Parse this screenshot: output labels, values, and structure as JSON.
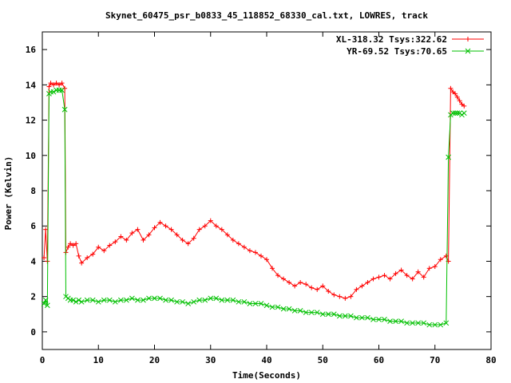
{
  "chart_data": {
    "type": "line",
    "title": "Skynet_60475_psr_b0833_45_118852_68330_cal.txt, LOWRES, track",
    "xlabel": "Time(Seconds)",
    "ylabel": "Power (Kelvin)",
    "xlim": [
      0,
      80
    ],
    "ylim": [
      -1,
      17
    ],
    "xticks": [
      0,
      10,
      20,
      30,
      40,
      50,
      60,
      70,
      80
    ],
    "yticks": [
      0,
      2,
      4,
      6,
      8,
      10,
      12,
      14,
      16
    ],
    "grid": false,
    "legend_position": "top-right",
    "series": [
      {
        "name": "XL-318.32 Tsys:322.62",
        "color": "#ff0000",
        "marker": "plus",
        "x": [
          0.3,
          0.6,
          0.9,
          1.2,
          1.5,
          2,
          2.5,
          3,
          3.5,
          4,
          4.2,
          4.6,
          5,
          5.5,
          6,
          6.5,
          7,
          8,
          9,
          10,
          11,
          12,
          13,
          14,
          15,
          16,
          17,
          18,
          19,
          20,
          21,
          22,
          23,
          24,
          25,
          26,
          27,
          28,
          29,
          30,
          31,
          32,
          33,
          34,
          35,
          36,
          37,
          38,
          39,
          40,
          41,
          42,
          43,
          44,
          45,
          46,
          47,
          48,
          49,
          50,
          51,
          52,
          53,
          54,
          55,
          56,
          57,
          58,
          59,
          60,
          61,
          62,
          63,
          64,
          65,
          66,
          67,
          68,
          69,
          70,
          71,
          72,
          72.4,
          72.8,
          73.2,
          73.6,
          74,
          74.4,
          74.8,
          75.2
        ],
        "y": [
          4.2,
          5.8,
          4.0,
          13.9,
          14.1,
          14.0,
          14.1,
          14.0,
          14.1,
          13.8,
          4.5,
          4.8,
          5.0,
          4.9,
          5.0,
          4.3,
          3.9,
          4.2,
          4.4,
          4.8,
          4.6,
          4.9,
          5.1,
          5.4,
          5.2,
          5.6,
          5.8,
          5.2,
          5.5,
          5.9,
          6.2,
          6.0,
          5.8,
          5.5,
          5.2,
          5.0,
          5.3,
          5.8,
          6.0,
          6.3,
          6.0,
          5.8,
          5.5,
          5.2,
          5.0,
          4.8,
          4.6,
          4.5,
          4.3,
          4.1,
          3.6,
          3.2,
          3.0,
          2.8,
          2.6,
          2.8,
          2.7,
          2.5,
          2.4,
          2.6,
          2.3,
          2.1,
          2.0,
          1.9,
          2.0,
          2.4,
          2.6,
          2.8,
          3.0,
          3.1,
          3.2,
          3.0,
          3.3,
          3.5,
          3.2,
          3.0,
          3.4,
          3.1,
          3.6,
          3.7,
          4.1,
          4.3,
          4.0,
          13.8,
          13.6,
          13.5,
          13.3,
          13.1,
          12.9,
          12.8
        ]
      },
      {
        "name": "YR-69.52 Tsys:70.65",
        "color": "#00c000",
        "marker": "cross",
        "x": [
          0.3,
          0.6,
          0.9,
          1.2,
          1.5,
          2,
          2.5,
          3,
          3.5,
          4,
          4.2,
          4.6,
          5,
          5.5,
          6,
          6.5,
          7,
          8,
          9,
          10,
          11,
          12,
          13,
          14,
          15,
          16,
          17,
          18,
          19,
          20,
          21,
          22,
          23,
          24,
          25,
          26,
          27,
          28,
          29,
          30,
          31,
          32,
          33,
          34,
          35,
          36,
          37,
          38,
          39,
          40,
          41,
          42,
          43,
          44,
          45,
          46,
          47,
          48,
          49,
          50,
          51,
          52,
          53,
          54,
          55,
          56,
          57,
          58,
          59,
          60,
          61,
          62,
          63,
          64,
          65,
          66,
          67,
          68,
          69,
          70,
          71,
          72,
          72.4,
          72.8,
          73.2,
          73.6,
          74,
          74.4,
          74.8,
          75.2
        ],
        "y": [
          1.6,
          1.8,
          1.5,
          13.5,
          13.6,
          13.6,
          13.7,
          13.7,
          13.7,
          12.6,
          2.0,
          1.9,
          1.8,
          1.8,
          1.7,
          1.8,
          1.7,
          1.8,
          1.8,
          1.7,
          1.8,
          1.8,
          1.7,
          1.8,
          1.8,
          1.9,
          1.8,
          1.8,
          1.9,
          1.9,
          1.9,
          1.8,
          1.8,
          1.7,
          1.7,
          1.6,
          1.7,
          1.8,
          1.8,
          1.9,
          1.9,
          1.8,
          1.8,
          1.8,
          1.7,
          1.7,
          1.6,
          1.6,
          1.6,
          1.5,
          1.4,
          1.4,
          1.3,
          1.3,
          1.2,
          1.2,
          1.1,
          1.1,
          1.1,
          1.0,
          1.0,
          1.0,
          0.9,
          0.9,
          0.9,
          0.8,
          0.8,
          0.8,
          0.7,
          0.7,
          0.7,
          0.6,
          0.6,
          0.6,
          0.5,
          0.5,
          0.5,
          0.5,
          0.4,
          0.4,
          0.4,
          0.5,
          9.9,
          12.3,
          12.4,
          12.4,
          12.4,
          12.4,
          12.3,
          12.4
        ]
      }
    ]
  }
}
